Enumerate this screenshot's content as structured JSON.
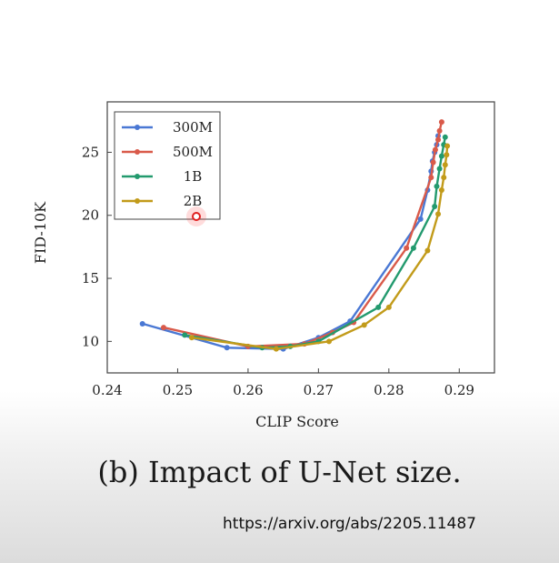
{
  "caption": "(b) Impact of U-Net size.",
  "source_url": "https://arxiv.org/abs/2205.11487",
  "chart_data": {
    "type": "line",
    "xlabel": "CLIP Score",
    "ylabel": "FID-10K",
    "xlim": [
      0.24,
      0.295
    ],
    "ylim": [
      7.5,
      29
    ],
    "xticks": [
      0.24,
      0.25,
      0.26,
      0.27,
      0.28,
      0.29
    ],
    "xtick_labels": [
      "0.24",
      "0.25",
      "0.26",
      "0.27",
      "0.28",
      "0.29"
    ],
    "yticks": [
      10,
      15,
      20,
      25
    ],
    "ytick_labels": [
      "10",
      "15",
      "20",
      "25"
    ],
    "grid": false,
    "legend_position": "top-left",
    "series": [
      {
        "name": "300M",
        "color": "#4a78d4",
        "x": [
          0.245,
          0.257,
          0.265,
          0.27,
          0.2745,
          0.2845,
          0.2855,
          0.286,
          0.2862,
          0.2865,
          0.2868,
          0.287
        ],
        "y": [
          11.4,
          9.5,
          9.4,
          10.3,
          11.6,
          19.7,
          22.0,
          23.5,
          24.3,
          25.0,
          25.6,
          26.3
        ]
      },
      {
        "name": "500M",
        "color": "#d95a4a",
        "x": [
          0.248,
          0.26,
          0.268,
          0.272,
          0.275,
          0.2825,
          0.286,
          0.2863,
          0.2866,
          0.287,
          0.2872,
          0.2875
        ],
        "y": [
          11.1,
          9.6,
          9.8,
          10.7,
          11.5,
          17.4,
          23.0,
          24.2,
          25.2,
          26.0,
          26.7,
          27.4
        ]
      },
      {
        "name": "1B",
        "color": "#239a6e",
        "x": [
          0.251,
          0.262,
          0.266,
          0.27,
          0.2785,
          0.2835,
          0.2865,
          0.2868,
          0.2872,
          0.2875,
          0.2878,
          0.288
        ],
        "y": [
          10.5,
          9.5,
          9.6,
          10.0,
          12.7,
          17.4,
          20.7,
          22.3,
          23.7,
          24.7,
          25.6,
          26.2
        ]
      },
      {
        "name": "2B",
        "color": "#c29b1a",
        "x": [
          0.252,
          0.264,
          0.2715,
          0.2765,
          0.28,
          0.2855,
          0.287,
          0.2875,
          0.2878,
          0.288,
          0.2882,
          0.2883
        ],
        "y": [
          10.3,
          9.4,
          10.0,
          11.3,
          12.7,
          17.2,
          20.1,
          22.0,
          23.0,
          24.0,
          24.8,
          25.5
        ]
      }
    ]
  }
}
